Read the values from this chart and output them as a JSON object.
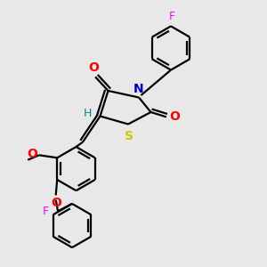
{
  "background_color": "#e8e8e8",
  "bond_color": "#000000",
  "line_width": 1.6,
  "atom_colors": {
    "O": "#ff0000",
    "N": "#0000cc",
    "S": "#cccc00",
    "F": "#ff00ff",
    "H": "#008888",
    "C": "#000000"
  },
  "font_size": 9,
  "figsize": [
    3.0,
    3.0
  ],
  "dpi": 100
}
